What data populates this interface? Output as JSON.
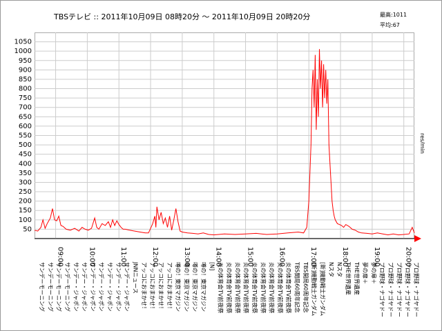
{
  "chart_data": {
    "type": "line",
    "title": "TBSテレビ :: 2011年10月09日 08時20分 ～ 2011年10月09日 20時20分",
    "stats": [
      "最高:1011",
      "平均:67"
    ],
    "ylabel": "res/min",
    "ylim": [
      0,
      1100
    ],
    "yticks": [
      50,
      100,
      150,
      200,
      250,
      300,
      350,
      400,
      450,
      500,
      550,
      600,
      650,
      700,
      750,
      800,
      850,
      900,
      950,
      1000,
      1050
    ],
    "x_start": "08:20",
    "x_end": "20:20",
    "xticks": [
      "09:00",
      "10:00",
      "11:00",
      "12:00",
      "13:00",
      "14:00",
      "15:00",
      "16:00",
      "17:00",
      "18:00",
      "19:00",
      "20:00"
    ],
    "grid": true,
    "series": [
      {
        "color": "#ff0000",
        "x": [
          "08:20",
          "08:26",
          "08:32",
          "08:36",
          "08:40",
          "08:44",
          "08:46",
          "08:50",
          "08:54",
          "08:58",
          "09:02",
          "09:06",
          "09:10",
          "09:14",
          "09:20",
          "09:28",
          "09:36",
          "09:44",
          "09:50",
          "09:56",
          "10:02",
          "10:08",
          "10:14",
          "10:18",
          "10:22",
          "10:28",
          "10:34",
          "10:40",
          "10:44",
          "10:48",
          "10:52",
          "10:56",
          "11:00",
          "11:04",
          "11:08",
          "11:12",
          "11:20",
          "11:30",
          "11:40",
          "11:50",
          "11:56",
          "12:00",
          "12:04",
          "12:08",
          "12:10",
          "12:12",
          "12:16",
          "12:20",
          "12:24",
          "12:28",
          "12:32",
          "12:36",
          "12:40",
          "12:44",
          "12:48",
          "12:52",
          "12:56",
          "13:00",
          "13:10",
          "13:20",
          "13:30",
          "13:40",
          "13:50",
          "14:00",
          "14:20",
          "14:40",
          "15:00",
          "15:20",
          "15:40",
          "16:00",
          "16:20",
          "16:40",
          "16:50",
          "16:56",
          "17:00",
          "17:04",
          "17:06",
          "17:08",
          "17:10",
          "17:12",
          "17:14",
          "17:16",
          "17:18",
          "17:20",
          "17:22",
          "17:24",
          "17:26",
          "17:28",
          "17:30",
          "17:32",
          "17:34",
          "17:36",
          "17:38",
          "17:40",
          "17:42",
          "17:44",
          "17:46",
          "17:48",
          "17:50",
          "17:54",
          "17:58",
          "18:02",
          "18:06",
          "18:10",
          "18:16",
          "18:22",
          "18:28",
          "18:34",
          "18:40",
          "18:50",
          "19:00",
          "19:10",
          "19:20",
          "19:30",
          "19:40",
          "19:50",
          "20:00",
          "20:10",
          "20:16",
          "20:20"
        ],
        "values": [
          45,
          40,
          60,
          100,
          55,
          80,
          90,
          110,
          160,
          100,
          95,
          120,
          70,
          65,
          50,
          45,
          55,
          40,
          60,
          50,
          45,
          55,
          110,
          60,
          50,
          80,
          70,
          90,
          60,
          100,
          70,
          95,
          75,
          60,
          50,
          50,
          45,
          40,
          35,
          30,
          30,
          55,
          80,
          120,
          60,
          170,
          100,
          140,
          80,
          110,
          60,
          120,
          45,
          100,
          160,
          90,
          40,
          35,
          30,
          28,
          25,
          30,
          22,
          20,
          25,
          22,
          25,
          28,
          22,
          25,
          30,
          35,
          30,
          60,
          200,
          500,
          800,
          900,
          700,
          980,
          580,
          850,
          650,
          1011,
          800,
          950,
          700,
          930,
          750,
          900,
          720,
          850,
          500,
          400,
          300,
          200,
          150,
          120,
          100,
          80,
          75,
          70,
          60,
          75,
          65,
          50,
          45,
          35,
          30,
          28,
          25,
          30,
          25,
          20,
          25,
          20,
          22,
          25,
          60,
          30
        ]
      }
    ],
    "programs": [
      "サンデーモーニング",
      "サンデーモーニング",
      "サンデーモーニング",
      "サンデーモーニング",
      "サンデー・ジャポン",
      "サンデー・ジャポン",
      "サンデー・ジャポン",
      "サンデー・ジャポン",
      "サンデー・ジャポン",
      "サンデー・ジャポン",
      "サンデー・ジャポン",
      "JNNニュース",
      "アッコにおまかせ！",
      "アッコにおまかせ！",
      "アッコにおまかせ！",
      "アッコにおまかせ！",
      "噂の！東京マガジン",
      "噂の！東京マガジン",
      "噂の！東京マガジン",
      "噂の！東京マガジン",
      "[N]",
      "炎の体育会TV前夜祭",
      "炎の体育会TV前夜祭",
      "炎の体育会TV前夜祭",
      "炎の体育会TV前夜祭",
      "炎の体育会TV前夜祭",
      "炎の体育会TV前夜祭",
      "炎の体育会TV前夜祭",
      "炎の体育会TV前夜祭",
      "炎の体育会TV前夜祭",
      "TBS開局60周年記念",
      "TBS開局60周年記念",
      "[新]機動戦士ガンダム",
      "[新]機動戦士ガンダム",
      "Nスタ",
      "Nスタ",
      "THE世界遺産",
      "THE世界遺産",
      "夢の扉＋",
      "夢の扉＋",
      "プロ野球・ナゴヤドー",
      "プロ野球・ナゴヤドー",
      "プロ野球・ナゴヤドー",
      "プロ野球・ナゴヤドー",
      "プロ野球・ナゴヤドー"
    ]
  }
}
